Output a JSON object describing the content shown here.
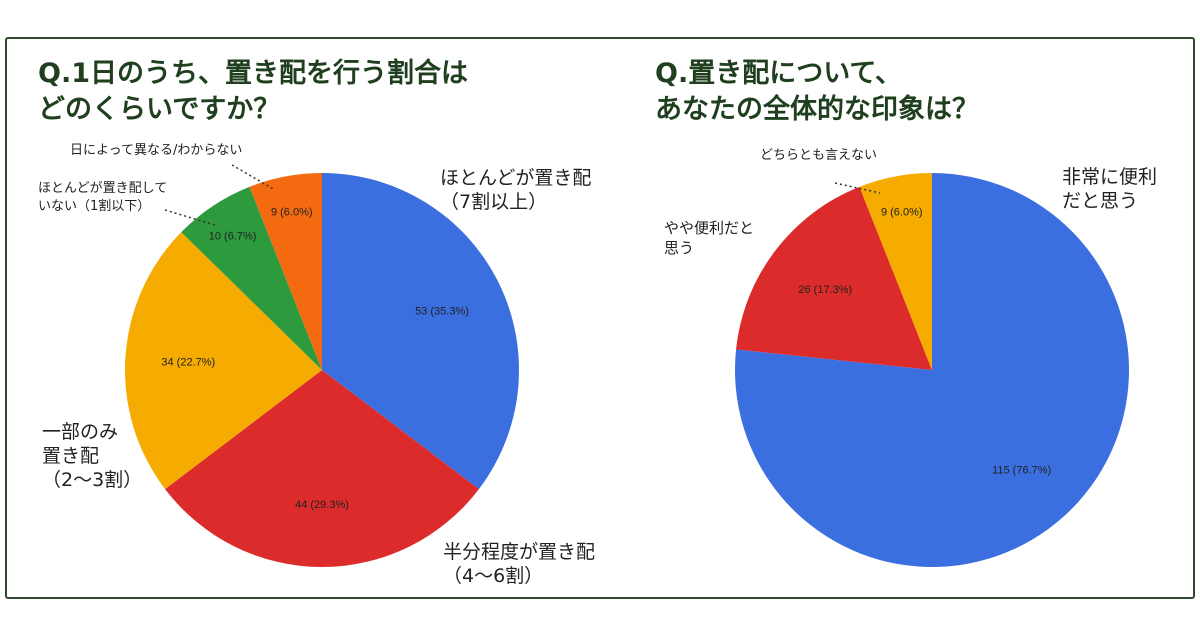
{
  "chart_data": [
    {
      "type": "pie",
      "title": "Q.1日のうち、置き配を行う割合は\nどのくらいですか？",
      "slices": [
        {
          "label": "ほとんどが置き配\n（7割以上）",
          "value": 53,
          "data_label": "53 (35.3%)",
          "color": "#3b6fe0"
        },
        {
          "label": "半分程度が置き配\n（4〜6割）",
          "value": 44,
          "data_label": "44 (29.3%)",
          "color": "#dc2b2b"
        },
        {
          "label": "一部のみ\n置き配\n（2〜3割）",
          "value": 34,
          "data_label": "34 (22.7%)",
          "color": "#f5ab00"
        },
        {
          "label": "ほとんどが置き配して\nいない（1割以下）",
          "value": 10,
          "data_label": "10 (6.7%)",
          "color": "#2e9a3e"
        },
        {
          "label": "日によって異なる/わからない",
          "value": 9,
          "data_label": "9 (6.0%)",
          "color": "#f36a10"
        }
      ]
    },
    {
      "type": "pie",
      "title": "Q.置き配について、\nあなたの全体的な印象は？",
      "slices": [
        {
          "label": "非常に便利\nだと思う",
          "value": 115,
          "data_label": "115 (76.7%)",
          "color": "#3b6fe0"
        },
        {
          "label": "やや便利だと\n思う",
          "value": 26,
          "data_label": "26 (17.3%)",
          "color": "#dc2b2b"
        },
        {
          "label": "どちらとも言えない",
          "value": 9,
          "data_label": "9 (6.0%)",
          "color": "#f5ab00"
        }
      ]
    }
  ]
}
